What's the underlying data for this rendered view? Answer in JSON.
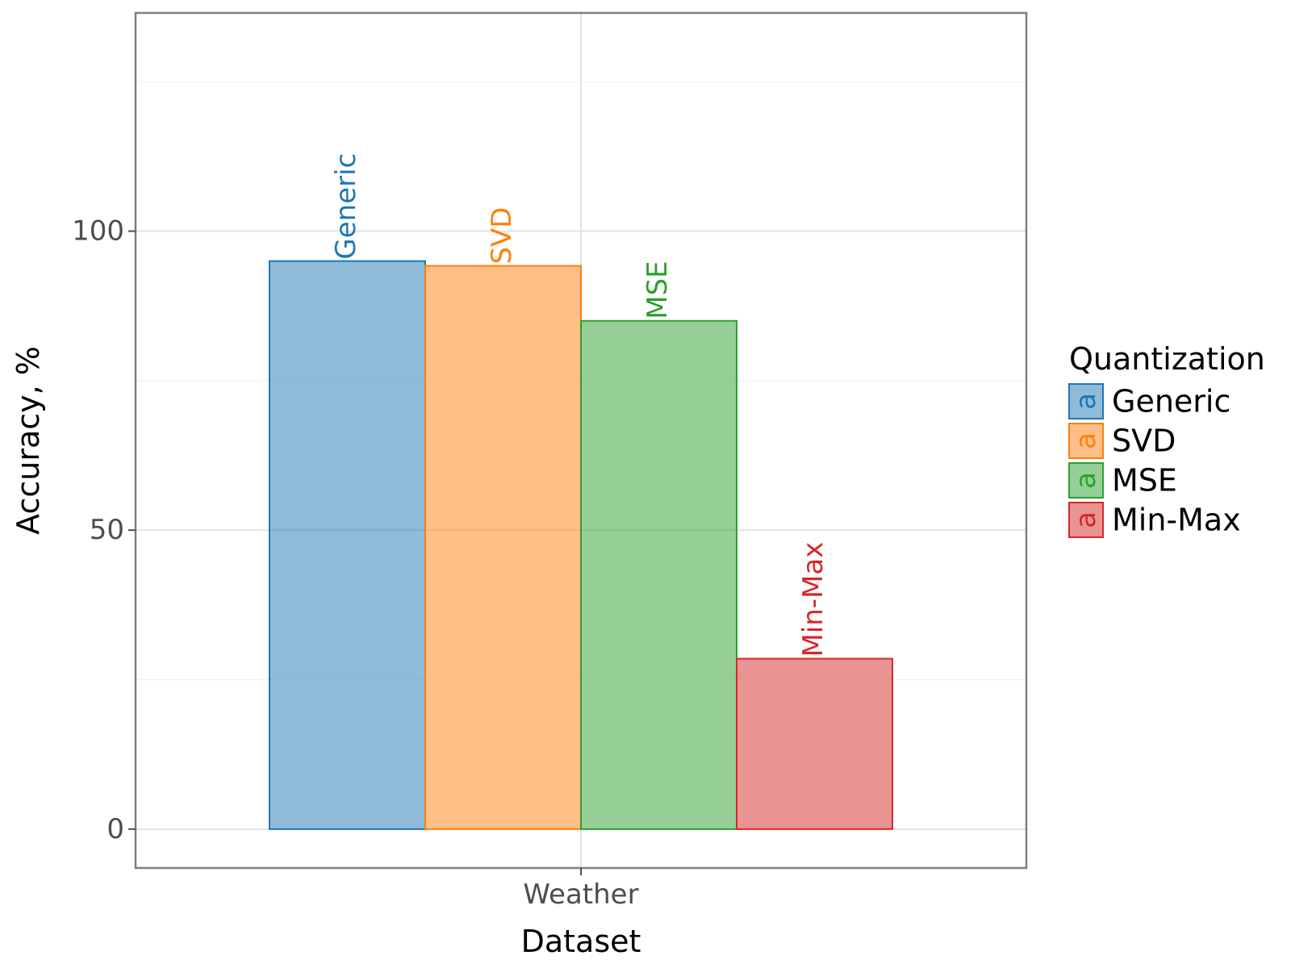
{
  "chart_data": {
    "type": "bar",
    "categories": [
      "Weather"
    ],
    "series": [
      {
        "name": "Generic",
        "values": [
          95
        ],
        "color": "#1f77b4"
      },
      {
        "name": "SVD",
        "values": [
          94.2
        ],
        "color": "#ff7f0e"
      },
      {
        "name": "MSE",
        "values": [
          85
        ],
        "color": "#2ca02c"
      },
      {
        "name": "Min-Max",
        "values": [
          28.5
        ],
        "color": "#d62728"
      }
    ],
    "xlabel": "Dataset",
    "ylabel": "Accuracy, %",
    "ylim": [
      -6.5,
      136.5
    ],
    "yticks": [
      0,
      50,
      100
    ],
    "legend": {
      "title": "Quantization",
      "placement": "right",
      "key_glyph": "a"
    },
    "grid": true,
    "bar_value_labels": "series name above each bar, rotated vertical"
  }
}
